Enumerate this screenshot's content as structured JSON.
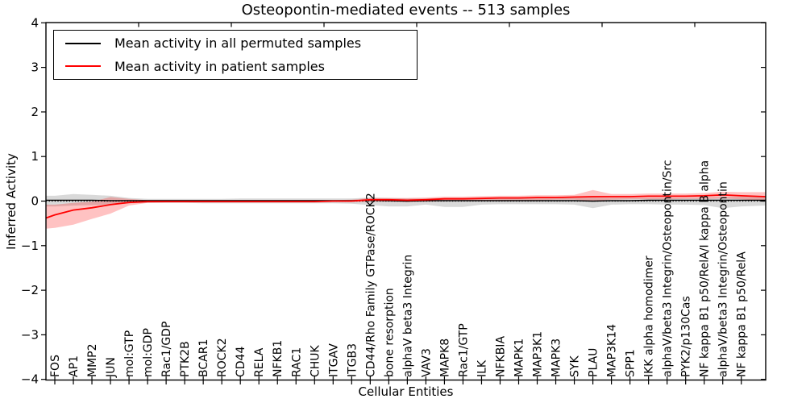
{
  "chart_data": {
    "type": "line",
    "title": "Osteopontin-mediated events -- 513 samples",
    "xlabel": "Cellular Entities",
    "ylabel": "Inferred Activity",
    "ylim": [
      -4,
      4
    ],
    "ytick_values": [
      4,
      3,
      2,
      1,
      0,
      -1,
      -2,
      -3,
      -4
    ],
    "ytick_labels": [
      "4",
      "3",
      "2",
      "1",
      "0",
      "−1",
      "−2",
      "−3",
      "−4"
    ],
    "grid": false,
    "zero_line_style": "dotted",
    "legend_position": "upper-left",
    "categories": [
      "FOS",
      "AP1",
      "MMP2",
      "JUN",
      "mol:GTP",
      "mol:GDP",
      "Rac1/GDP",
      "PTK2B",
      "BCAR1",
      "ROCK2",
      "CD44",
      "RELA",
      "NFKB1",
      "RAC1",
      "CHUK",
      "ITGAV",
      "ITGB3",
      "CD44/Rho Family GTPase/ROCK2",
      "bone resorption",
      "alphaV beta3 Integrin",
      "VAV3",
      "MAPK8",
      "Rac1/GTP",
      "ILK",
      "NFKBIA",
      "MAPK1",
      "MAP3K1",
      "MAPK3",
      "SYK",
      "PLAU",
      "MAP3K14",
      "SPP1",
      "IKK alpha homodimer",
      "alphaV/beta3 Integrin/Osteopontin/Src",
      "PYK2/p130Cas",
      "NF kappa B1 p50/RelA/I kappa B alpha",
      "alphaV/beta3 Integrin/Osteopontin",
      "NF kappa B1 p50/RelA"
    ],
    "series": [
      {
        "name": "Mean activity in all permuted samples",
        "color": "#000000",
        "band_color": "rgba(0,0,0,0.15)",
        "values": [
          0.02,
          0.02,
          0.02,
          0.01,
          0.01,
          0.01,
          0.01,
          0.01,
          0.01,
          0.01,
          0.01,
          0.01,
          0.01,
          0.01,
          0.01,
          0.01,
          0.01,
          0.02,
          0.01,
          0.0,
          0.01,
          0.01,
          0.01,
          0.01,
          0.01,
          0.01,
          0.01,
          0.01,
          0.01,
          0.0,
          0.01,
          0.01,
          0.02,
          0.02,
          0.02,
          0.02,
          0.02,
          0.02
        ],
        "band_low": [
          -0.12,
          -0.1,
          -0.09,
          -0.08,
          -0.05,
          -0.04,
          -0.04,
          -0.04,
          -0.05,
          -0.05,
          -0.05,
          -0.05,
          -0.05,
          -0.05,
          -0.05,
          -0.05,
          -0.06,
          -0.09,
          -0.12,
          -0.12,
          -0.08,
          -0.13,
          -0.13,
          -0.08,
          -0.07,
          -0.07,
          -0.07,
          -0.07,
          -0.08,
          -0.16,
          -0.08,
          -0.07,
          -0.07,
          -0.08,
          -0.08,
          -0.09,
          -0.16,
          -0.12
        ],
        "band_high": [
          0.12,
          0.16,
          0.14,
          0.12,
          0.07,
          0.05,
          0.05,
          0.05,
          0.05,
          0.05,
          0.06,
          0.06,
          0.06,
          0.06,
          0.06,
          0.06,
          0.06,
          0.08,
          0.07,
          0.06,
          0.06,
          0.07,
          0.07,
          0.06,
          0.06,
          0.06,
          0.06,
          0.06,
          0.07,
          0.08,
          0.07,
          0.07,
          0.07,
          0.07,
          0.07,
          0.08,
          0.09,
          0.1
        ],
        "edge_left": {
          "value": 0.02,
          "band_low": -0.12,
          "band_high": 0.12
        },
        "edge_right": {
          "value": 0.02,
          "band_low": -0.1,
          "band_high": 0.09
        }
      },
      {
        "name": "Mean activity in patient samples",
        "color": "#ff0000",
        "band_color": "rgba(255,0,0,0.24)",
        "values": [
          -0.31,
          -0.2,
          -0.15,
          -0.08,
          -0.03,
          -0.01,
          -0.01,
          -0.01,
          -0.01,
          -0.01,
          -0.01,
          -0.01,
          -0.01,
          -0.01,
          -0.01,
          0.0,
          0.0,
          0.03,
          0.03,
          0.02,
          0.03,
          0.05,
          0.05,
          0.06,
          0.07,
          0.07,
          0.08,
          0.08,
          0.09,
          0.1,
          0.1,
          0.1,
          0.11,
          0.11,
          0.11,
          0.12,
          0.14,
          0.12
        ],
        "band_low": [
          -0.6,
          -0.53,
          -0.4,
          -0.28,
          -0.1,
          -0.04,
          -0.03,
          -0.03,
          -0.03,
          -0.03,
          -0.03,
          -0.03,
          -0.03,
          -0.03,
          -0.03,
          -0.02,
          -0.02,
          -0.01,
          -0.01,
          -0.02,
          -0.01,
          0.0,
          0.0,
          0.01,
          0.01,
          0.02,
          0.02,
          0.03,
          0.03,
          0.0,
          0.03,
          0.04,
          0.04,
          0.04,
          0.05,
          0.05,
          0.06,
          0.04
        ],
        "band_high": [
          -0.08,
          -0.04,
          -0.01,
          0.09,
          0.05,
          0.02,
          0.02,
          0.02,
          0.02,
          0.02,
          0.02,
          0.02,
          0.02,
          0.02,
          0.02,
          0.02,
          0.03,
          0.07,
          0.07,
          0.07,
          0.08,
          0.1,
          0.1,
          0.11,
          0.12,
          0.12,
          0.13,
          0.13,
          0.14,
          0.25,
          0.16,
          0.16,
          0.17,
          0.17,
          0.17,
          0.18,
          0.21,
          0.2
        ],
        "edge_left": {
          "value": -0.38,
          "band_low": -0.62,
          "band_high": -0.08
        },
        "edge_right": {
          "value": 0.1,
          "band_low": 0.0,
          "band_high": 0.2
        }
      }
    ]
  }
}
